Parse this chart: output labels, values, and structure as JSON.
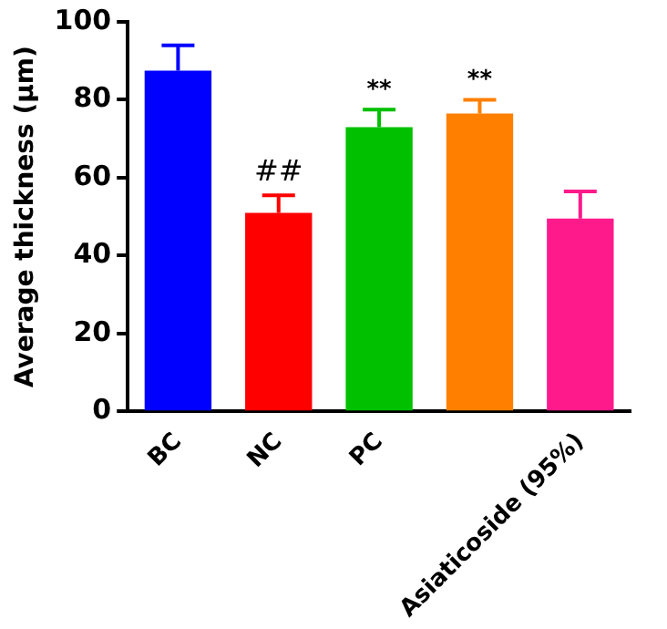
{
  "chart_data": {
    "type": "bar",
    "ylabel": "Average thickness (µm)",
    "categories": [
      "BC",
      "NC",
      "PC",
      null,
      "Asiaticoside (95%)"
    ],
    "values": [
      87.5,
      51,
      73,
      76.5,
      49.5
    ],
    "colors": [
      "#0000ff",
      "#ff0000",
      "#00c000",
      "#ff8000",
      "#ff1a8c"
    ],
    "errors": [
      [
        87.5,
        94
      ],
      [
        51,
        55.5
      ],
      [
        73,
        77.5
      ],
      [
        76.5,
        80
      ],
      [
        49.5,
        56.5
      ]
    ],
    "value_labels": [
      null,
      "##",
      "**",
      "**",
      null
    ],
    "ylim": [
      0,
      100
    ],
    "yticks": [
      0,
      20,
      40,
      60,
      80,
      100
    ],
    "grid": false,
    "legend": false
  }
}
